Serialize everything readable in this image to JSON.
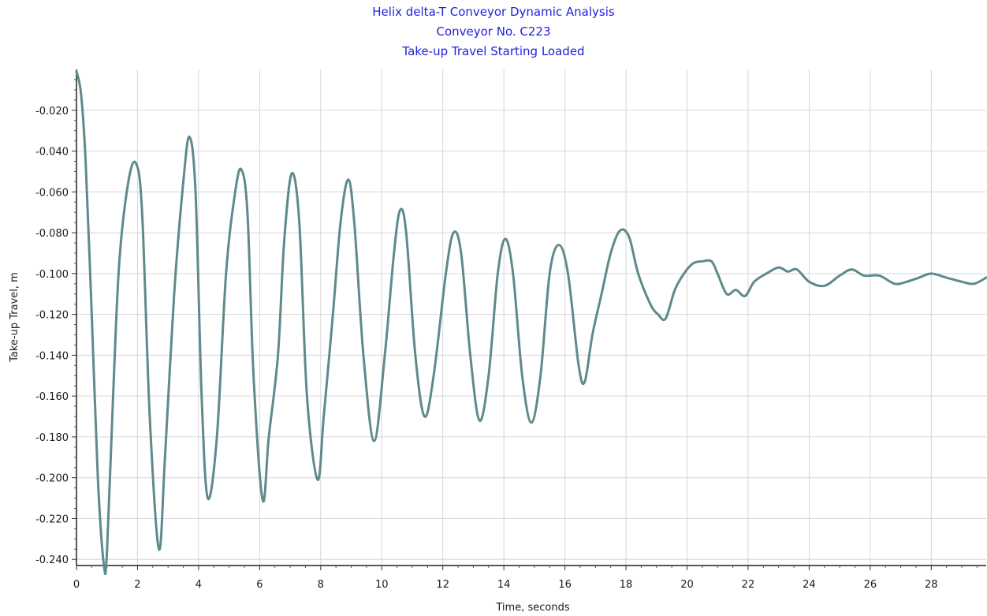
{
  "chart_data": {
    "type": "line",
    "title": [
      "Helix delta-T Conveyor Dynamic Analysis",
      "Conveyor No. C223",
      "Take-up Travel Starting Loaded"
    ],
    "xlabel": "Time, seconds",
    "ylabel": "Take-up Travel, m",
    "xlim": [
      0,
      29.8
    ],
    "ylim": [
      -0.243,
      0.0
    ],
    "x_ticks": [
      0,
      2,
      4,
      6,
      8,
      10,
      12,
      14,
      16,
      18,
      20,
      22,
      24,
      26,
      28
    ],
    "y_ticks": [
      -0.02,
      -0.04,
      -0.06,
      -0.08,
      -0.1,
      -0.12,
      -0.14,
      -0.16,
      -0.18,
      -0.2,
      -0.22,
      -0.24
    ],
    "y_tick_labels": [
      "-0.020",
      "-0.040",
      "-0.060",
      "-0.080",
      "-0.100",
      "-0.120",
      "-0.140",
      "-0.160",
      "-0.180",
      "-0.200",
      "-0.220",
      "-0.240"
    ],
    "grid": true,
    "line_color": "#5f8a8b",
    "series": [
      {
        "points": [
          [
            0.0,
            -0.001
          ],
          [
            0.15,
            -0.012
          ],
          [
            0.3,
            -0.045
          ],
          [
            0.5,
            -0.12
          ],
          [
            0.7,
            -0.2
          ],
          [
            0.9,
            -0.243
          ],
          [
            1.0,
            -0.236
          ],
          [
            1.2,
            -0.16
          ],
          [
            1.4,
            -0.095
          ],
          [
            1.7,
            -0.055
          ],
          [
            1.95,
            -0.046
          ],
          [
            2.15,
            -0.07
          ],
          [
            2.4,
            -0.17
          ],
          [
            2.7,
            -0.235
          ],
          [
            2.9,
            -0.19
          ],
          [
            3.2,
            -0.11
          ],
          [
            3.5,
            -0.055
          ],
          [
            3.7,
            -0.033
          ],
          [
            3.9,
            -0.06
          ],
          [
            4.1,
            -0.16
          ],
          [
            4.3,
            -0.21
          ],
          [
            4.6,
            -0.18
          ],
          [
            4.9,
            -0.1
          ],
          [
            5.2,
            -0.06
          ],
          [
            5.4,
            -0.049
          ],
          [
            5.6,
            -0.07
          ],
          [
            5.8,
            -0.15
          ],
          [
            6.1,
            -0.211
          ],
          [
            6.3,
            -0.18
          ],
          [
            6.6,
            -0.14
          ],
          [
            6.8,
            -0.085
          ],
          [
            7.05,
            -0.051
          ],
          [
            7.3,
            -0.075
          ],
          [
            7.55,
            -0.16
          ],
          [
            7.9,
            -0.201
          ],
          [
            8.1,
            -0.17
          ],
          [
            8.4,
            -0.12
          ],
          [
            8.65,
            -0.075
          ],
          [
            8.9,
            -0.054
          ],
          [
            9.1,
            -0.075
          ],
          [
            9.4,
            -0.14
          ],
          [
            9.75,
            -0.182
          ],
          [
            10.1,
            -0.14
          ],
          [
            10.4,
            -0.09
          ],
          [
            10.6,
            -0.069
          ],
          [
            10.8,
            -0.08
          ],
          [
            11.1,
            -0.14
          ],
          [
            11.4,
            -0.17
          ],
          [
            11.7,
            -0.15
          ],
          [
            12.1,
            -0.1
          ],
          [
            12.35,
            -0.08
          ],
          [
            12.6,
            -0.09
          ],
          [
            12.9,
            -0.14
          ],
          [
            13.2,
            -0.172
          ],
          [
            13.5,
            -0.15
          ],
          [
            13.8,
            -0.1
          ],
          [
            14.05,
            -0.083
          ],
          [
            14.3,
            -0.1
          ],
          [
            14.6,
            -0.15
          ],
          [
            14.9,
            -0.173
          ],
          [
            15.2,
            -0.15
          ],
          [
            15.5,
            -0.1
          ],
          [
            15.8,
            -0.086
          ],
          [
            16.1,
            -0.1
          ],
          [
            16.45,
            -0.145
          ],
          [
            16.65,
            -0.153
          ],
          [
            16.9,
            -0.13
          ],
          [
            17.2,
            -0.11
          ],
          [
            17.5,
            -0.09
          ],
          [
            17.8,
            -0.079
          ],
          [
            18.1,
            -0.082
          ],
          [
            18.4,
            -0.1
          ],
          [
            18.8,
            -0.115
          ],
          [
            19.05,
            -0.12
          ],
          [
            19.3,
            -0.122
          ],
          [
            19.6,
            -0.108
          ],
          [
            19.9,
            -0.1
          ],
          [
            20.2,
            -0.095
          ],
          [
            20.5,
            -0.094
          ],
          [
            20.8,
            -0.094
          ],
          [
            21.0,
            -0.1
          ],
          [
            21.3,
            -0.11
          ],
          [
            21.6,
            -0.108
          ],
          [
            21.9,
            -0.111
          ],
          [
            22.2,
            -0.104
          ],
          [
            22.6,
            -0.1
          ],
          [
            23.0,
            -0.097
          ],
          [
            23.3,
            -0.099
          ],
          [
            23.6,
            -0.098
          ],
          [
            24.0,
            -0.104
          ],
          [
            24.5,
            -0.106
          ],
          [
            25.0,
            -0.101
          ],
          [
            25.4,
            -0.098
          ],
          [
            25.8,
            -0.101
          ],
          [
            26.3,
            -0.101
          ],
          [
            26.8,
            -0.105
          ],
          [
            27.2,
            -0.104
          ],
          [
            27.6,
            -0.102
          ],
          [
            28.0,
            -0.1
          ],
          [
            28.5,
            -0.102
          ],
          [
            29.0,
            -0.104
          ],
          [
            29.4,
            -0.105
          ],
          [
            29.8,
            -0.102
          ]
        ]
      }
    ]
  }
}
